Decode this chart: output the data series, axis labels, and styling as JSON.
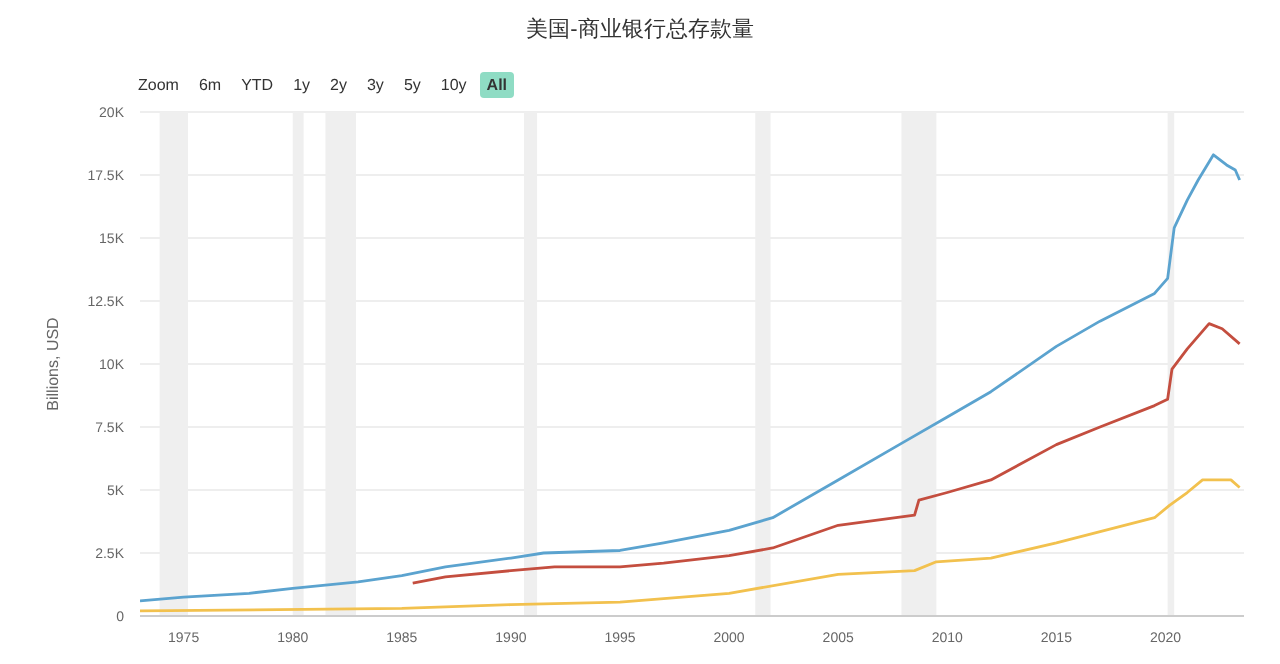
{
  "chart_data": {
    "type": "line",
    "title": "美国-商业银行总存款量",
    "ylabel": "Billions, USD",
    "annotations": [
      "Zoom",
      "6m",
      "YTD",
      "1y",
      "2y",
      "3y",
      "5y",
      "10y",
      "All"
    ],
    "xlim": [
      1973,
      2023.6
    ],
    "xticks": [
      1975,
      1980,
      1985,
      1990,
      1995,
      2000,
      2005,
      2010,
      2015,
      2020
    ],
    "ylim": [
      0,
      20000
    ],
    "yticks": [
      0,
      {
        "value": 2500,
        "label": "2.5K"
      },
      {
        "value": 5000,
        "label": "5K"
      },
      {
        "value": 7500,
        "label": "7.5K"
      },
      {
        "value": 10000,
        "label": "10K"
      },
      {
        "value": 12500,
        "label": "12.5K"
      },
      {
        "value": 15000,
        "label": "15K"
      },
      {
        "value": 17500,
        "label": "17.5K"
      },
      {
        "value": 20000,
        "label": "20K"
      }
    ],
    "grid": "y",
    "legend": false,
    "marker": "none",
    "line_style": "solid",
    "bands": [
      {
        "axis": "x",
        "from": 1973.9,
        "to": 1975.2,
        "color": "#efefef"
      },
      {
        "axis": "x",
        "from": 1980,
        "to": 1980.5,
        "color": "#efefef"
      },
      {
        "axis": "x",
        "from": 1981.5,
        "to": 1982.9,
        "color": "#efefef"
      },
      {
        "axis": "x",
        "from": 1990.6,
        "to": 1991.2,
        "color": "#efefef"
      },
      {
        "axis": "x",
        "from": 2001.2,
        "to": 2001.9,
        "color": "#efefef"
      },
      {
        "axis": "x",
        "from": 2007.9,
        "to": 2009.5,
        "color": "#efefef"
      },
      {
        "axis": "x",
        "from": 2020.1,
        "to": 2020.4,
        "color": "#efefef"
      }
    ],
    "series": [
      {
        "color": "#5ba3cf",
        "x": [
          1973,
          1975,
          1978,
          1980,
          1983,
          1985,
          1987,
          1990,
          1991.5,
          1995,
          1997,
          2000,
          2002,
          2005,
          2008,
          2010,
          2012,
          2015,
          2017,
          2019.5,
          2020.1,
          2020.4,
          2021,
          2021.5,
          2022.2,
          2022.8,
          2023.2,
          2023.4
        ],
        "values": [
          600,
          750,
          900,
          1100,
          1350,
          1600,
          1950,
          2300,
          2500,
          2600,
          2900,
          3400,
          3900,
          5400,
          6900,
          7900,
          8900,
          10700,
          11700,
          12800,
          13400,
          15400,
          16500,
          17300,
          18300,
          17900,
          17700,
          17300
        ]
      },
      {
        "color": "#c44e3f",
        "x": [
          1985.5,
          1987,
          1990,
          1992,
          1995,
          1997,
          2000,
          2002,
          2005,
          2008.5,
          2008.7,
          2010,
          2012,
          2015,
          2017,
          2019.5,
          2020.1,
          2020.3,
          2021,
          2022,
          2022.6,
          2023.4
        ],
        "values": [
          1300,
          1550,
          1800,
          1950,
          1950,
          2100,
          2400,
          2700,
          3600,
          4000,
          4600,
          4900,
          5400,
          6800,
          7500,
          8350,
          8600,
          9800,
          10600,
          11600,
          11400,
          10800
        ]
      },
      {
        "color": "#f2c14e",
        "x": [
          1973,
          1985,
          1990,
          1995,
          2000,
          2005,
          2008.5,
          2009.5,
          2012,
          2015,
          2019.5,
          2020.2,
          2021,
          2021.7,
          2023,
          2023.4
        ],
        "values": [
          200,
          300,
          450,
          550,
          900,
          1650,
          1800,
          2150,
          2300,
          2900,
          3900,
          4400,
          4900,
          5400,
          5400,
          5100
        ]
      }
    ]
  }
}
